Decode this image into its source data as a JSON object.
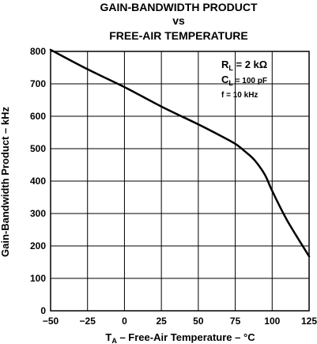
{
  "chart_data": {
    "type": "line",
    "title_lines": [
      "GAIN-BANDWIDTH PRODUCT",
      "vs",
      "FREE-AIR TEMPERATURE"
    ],
    "xlabel": {
      "main": "T",
      "sub": "A",
      "rest": " – Free-Air Temperature – °C"
    },
    "ylabel": "Gain-Bandwidth Product – kHz",
    "xlim": [
      -50,
      125
    ],
    "ylim": [
      0,
      800
    ],
    "x_ticks": [
      -50,
      -25,
      0,
      25,
      50,
      75,
      100,
      125
    ],
    "x_tick_labels": [
      "−50",
      "−25",
      "0",
      "25",
      "50",
      "75",
      "100",
      "125"
    ],
    "y_ticks": [
      0,
      100,
      200,
      300,
      400,
      500,
      600,
      700,
      800
    ],
    "y_tick_labels": [
      "0",
      "100",
      "200",
      "300",
      "400",
      "500",
      "600",
      "700",
      "800"
    ],
    "grid": true,
    "annotations": [
      {
        "main": "R",
        "sub": "L",
        "rest": " = 2 kΩ"
      },
      {
        "main": "C",
        "sub": "L",
        "rest": " = 100 pF"
      },
      {
        "main": "f",
        "sub": "",
        "rest": " = 10 kHz"
      }
    ],
    "series": [
      {
        "x": [
          -50,
          -25,
          0,
          25,
          50,
          65,
          75,
          82,
          88,
          95,
          100,
          110,
          125
        ],
        "values": [
          805,
          745,
          690,
          630,
          575,
          540,
          515,
          490,
          465,
          420,
          370,
          280,
          168
        ]
      }
    ]
  }
}
